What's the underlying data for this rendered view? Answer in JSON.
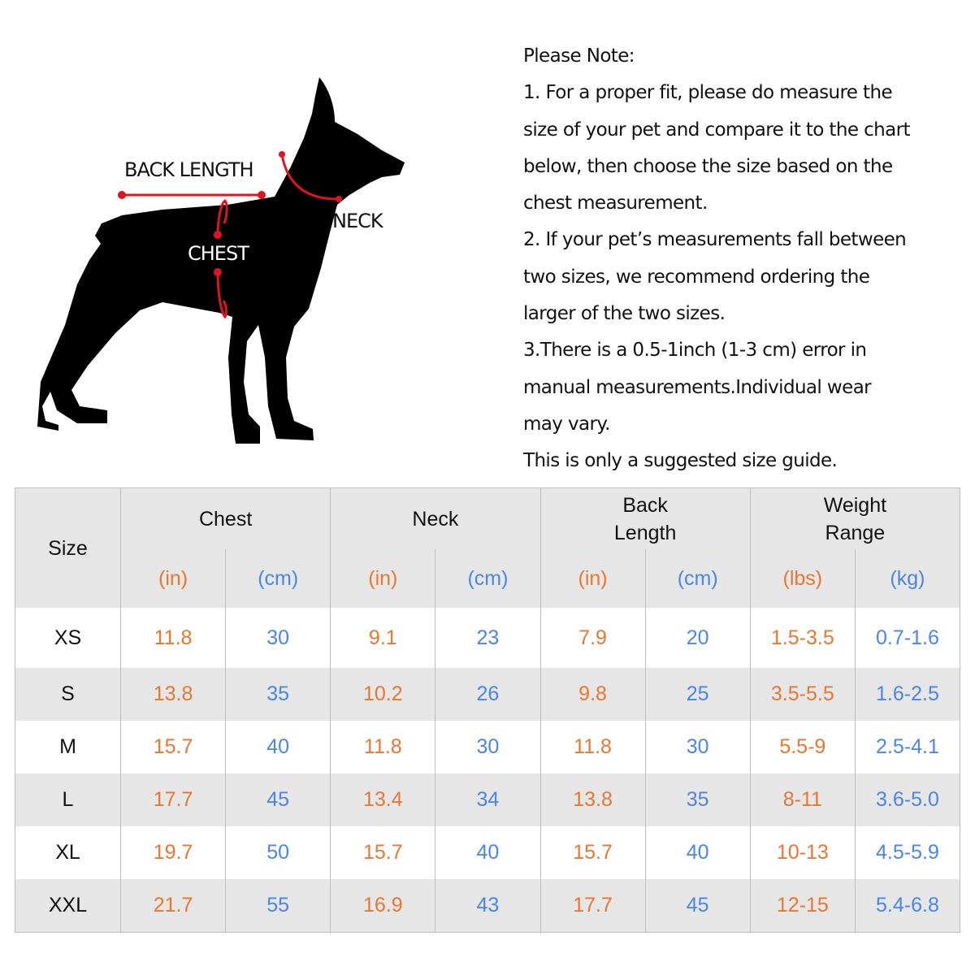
{
  "diagram": {
    "labels": {
      "back_length": "BACK LENGTH",
      "neck": "NECK",
      "chest": "CHEST"
    },
    "colors": {
      "silhouette": "#000000",
      "measure": "#e0141e"
    }
  },
  "notes": {
    "lines": [
      "Please Note:",
      "1. For a proper fit, please do measure the",
      "size of your pet and compare it to the chart",
      "below, then choose the size based on the",
      "chest measurement.",
      "2. If your pet’s measurements fall between",
      "two sizes, we recommend ordering the",
      "larger of the two sizes.",
      "3.There is a 0.5-1inch (1-3 cm) error in",
      "manual measurements.Individual wear",
      "may vary.",
      "This is only a suggested size guide."
    ]
  },
  "table": {
    "colors": {
      "in": "#e9772f",
      "cm": "#4a86e8",
      "header_bg": "#e6e6e6"
    },
    "size_header": "Size",
    "groups": [
      {
        "title": "Chest",
        "units": [
          "(in)",
          "(cm)"
        ]
      },
      {
        "title": "Neck",
        "units": [
          "(in)",
          "(cm)"
        ]
      },
      {
        "title": "Back Length",
        "units": [
          "(in)",
          "(cm)"
        ]
      },
      {
        "title": "Weight Range",
        "units": [
          "(lbs)",
          "(kg)"
        ]
      }
    ],
    "rows": [
      [
        "XS",
        "11.8",
        "30",
        "9.1",
        "23",
        "7.9",
        "20",
        "1.5-3.5",
        "0.7-1.6"
      ],
      [
        "S",
        "13.8",
        "35",
        "10.2",
        "26",
        "9.8",
        "25",
        "3.5-5.5",
        "1.6-2.5"
      ],
      [
        "M",
        "15.7",
        "40",
        "11.8",
        "30",
        "11.8",
        "30",
        "5.5-9",
        "2.5-4.1"
      ],
      [
        "L",
        "17.7",
        "45",
        "13.4",
        "34",
        "13.8",
        "35",
        "8-11",
        "3.6-5.0"
      ],
      [
        "XL",
        "19.7",
        "50",
        "15.7",
        "40",
        "15.7",
        "40",
        "10-13",
        "4.5-5.9"
      ],
      [
        "XXL",
        "21.7",
        "55",
        "16.9",
        "43",
        "17.7",
        "45",
        "12-15",
        "5.4-6.8"
      ]
    ]
  }
}
